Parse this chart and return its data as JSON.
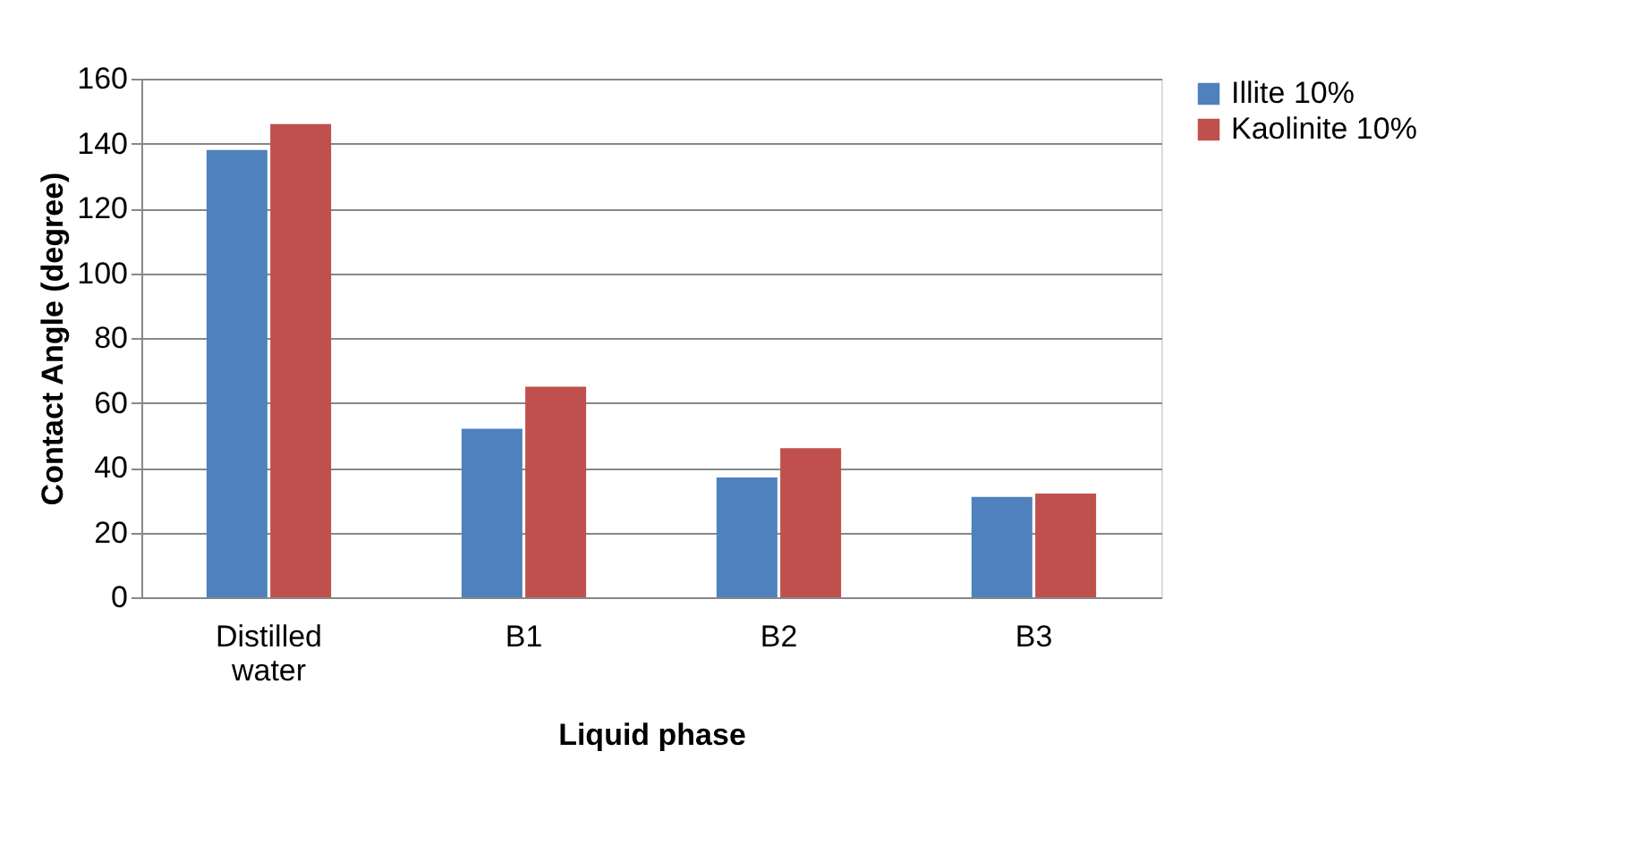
{
  "chart_data": {
    "type": "bar",
    "xlabel": "Liquid phase",
    "ylabel": "Contact Angle (degree)",
    "categories": [
      "Distilled water",
      "B1",
      "B2",
      "B3"
    ],
    "series": [
      {
        "name": "Illite 10%",
        "color": "#4f81bd",
        "values": [
          138,
          52,
          37,
          31
        ]
      },
      {
        "name": "Kaolinite 10%",
        "color": "#c0504d",
        "values": [
          146,
          65,
          46,
          32
        ]
      }
    ],
    "ylim": [
      0,
      160
    ],
    "yticks": [
      0,
      20,
      40,
      60,
      80,
      100,
      120,
      140,
      160
    ],
    "grid": "y",
    "legend": "right"
  }
}
